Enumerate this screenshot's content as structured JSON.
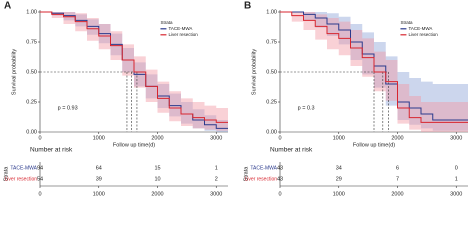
{
  "chart_data": [
    {
      "type": "line",
      "panel": "A",
      "ylabel": "Survival probability",
      "xlabel": "Follow up time(d)",
      "legend_title": "Strata",
      "annotation": "p = 0.93",
      "risk_title": "Number at risk",
      "risk_ylabel": "Strata",
      "xlim": [
        0,
        3200
      ],
      "ylim": [
        0,
        1
      ],
      "xticks": [
        0,
        1000,
        2000,
        3000
      ],
      "yticks": [
        {
          "value": 0,
          "label": "0.00"
        },
        {
          "value": 0.25,
          "label": "0.25"
        },
        {
          "value": 0.5,
          "label": "0.50"
        },
        {
          "value": 0.75,
          "label": "0.75"
        },
        {
          "value": 1,
          "label": "1.00"
        }
      ],
      "median_lines": {
        "y": 0.5,
        "x": [
          1480,
          1560,
          1650
        ]
      },
      "x": [
        0,
        200,
        400,
        600,
        800,
        1000,
        1200,
        1400,
        1600,
        1800,
        2000,
        2200,
        2400,
        2600,
        2800,
        3000,
        3200
      ],
      "series": [
        {
          "name": "TACE-MWA",
          "color": "#2b3a8c",
          "band_color": "#8fa3d6",
          "values": [
            1,
            0.99,
            0.97,
            0.93,
            0.88,
            0.82,
            0.73,
            0.6,
            0.48,
            0.38,
            0.3,
            0.22,
            0.15,
            0.1,
            0.06,
            0.03,
            0.03
          ],
          "lower": [
            1,
            0.97,
            0.93,
            0.88,
            0.81,
            0.74,
            0.64,
            0.5,
            0.38,
            0.28,
            0.2,
            0.13,
            0.07,
            0.03,
            0.01,
            0,
            0
          ],
          "upper": [
            1,
            1,
            1,
            0.98,
            0.94,
            0.9,
            0.82,
            0.7,
            0.58,
            0.48,
            0.4,
            0.32,
            0.25,
            0.19,
            0.14,
            0.1,
            0.1
          ],
          "risk": [
            94,
            64,
            15,
            1
          ]
        },
        {
          "name": "Liver resection",
          "color": "#d7262f",
          "band_color": "#f19aa3",
          "values": [
            1,
            0.98,
            0.96,
            0.92,
            0.86,
            0.8,
            0.72,
            0.6,
            0.5,
            0.38,
            0.28,
            0.2,
            0.15,
            0.12,
            0.1,
            0.08,
            0.08
          ],
          "lower": [
            1,
            0.95,
            0.9,
            0.84,
            0.76,
            0.69,
            0.6,
            0.47,
            0.37,
            0.25,
            0.16,
            0.09,
            0.05,
            0.03,
            0.02,
            0.01,
            0.01
          ],
          "upper": [
            1,
            1,
            1,
            0.99,
            0.95,
            0.9,
            0.84,
            0.73,
            0.63,
            0.52,
            0.42,
            0.34,
            0.28,
            0.25,
            0.22,
            0.2,
            0.2
          ],
          "risk": [
            54,
            39,
            10,
            2
          ]
        }
      ]
    },
    {
      "type": "line",
      "panel": "B",
      "ylabel": "Survival probability",
      "xlabel": "Follow up time(d)",
      "legend_title": "Strata",
      "annotation": "p = 0.3",
      "risk_title": "Number at risk",
      "risk_ylabel": "Strata",
      "xlim": [
        0,
        3200
      ],
      "ylim": [
        0,
        1
      ],
      "xticks": [
        0,
        1000,
        2000,
        3000
      ],
      "yticks": [
        {
          "value": 0,
          "label": "0.00"
        },
        {
          "value": 0.25,
          "label": "0.25"
        },
        {
          "value": 0.5,
          "label": "0.50"
        },
        {
          "value": 0.75,
          "label": "0.75"
        },
        {
          "value": 1,
          "label": "1.00"
        }
      ],
      "median_lines": {
        "y": 0.5,
        "x": [
          1600,
          1750,
          1850
        ]
      },
      "x": [
        0,
        200,
        400,
        600,
        800,
        1000,
        1200,
        1400,
        1600,
        1800,
        2000,
        2200,
        2400,
        2600,
        2800,
        3000,
        3200
      ],
      "series": [
        {
          "name": "TACE-MWA",
          "color": "#2b3a8c",
          "band_color": "#8fa3d6",
          "values": [
            1,
            1,
            0.98,
            0.95,
            0.9,
            0.85,
            0.75,
            0.65,
            0.55,
            0.4,
            0.25,
            0.2,
            0.15,
            0.1,
            0.1,
            0.1,
            0.1
          ],
          "lower": [
            1,
            1,
            0.93,
            0.87,
            0.8,
            0.73,
            0.6,
            0.48,
            0.37,
            0.22,
            0.1,
            0.06,
            0.03,
            0.01,
            0.01,
            0.01,
            0.01
          ],
          "upper": [
            1,
            1,
            1,
            1,
            0.99,
            0.96,
            0.9,
            0.83,
            0.75,
            0.63,
            0.5,
            0.45,
            0.42,
            0.4,
            0.4,
            0.4,
            0.4
          ],
          "risk": [
            43,
            34,
            6,
            0
          ]
        },
        {
          "name": "Liver resection",
          "color": "#d7262f",
          "band_color": "#f19aa3",
          "values": [
            1,
            0.97,
            0.93,
            0.88,
            0.82,
            0.78,
            0.7,
            0.62,
            0.5,
            0.42,
            0.2,
            0.12,
            0.08,
            0.08,
            0.08,
            0.08,
            0.08
          ],
          "lower": [
            1,
            0.92,
            0.85,
            0.77,
            0.69,
            0.64,
            0.55,
            0.46,
            0.34,
            0.26,
            0.07,
            0.02,
            0,
            0,
            0,
            0,
            0
          ],
          "upper": [
            1,
            1,
            1,
            0.98,
            0.95,
            0.92,
            0.85,
            0.78,
            0.67,
            0.6,
            0.4,
            0.3,
            0.25,
            0.25,
            0.25,
            0.25,
            0.25
          ],
          "risk": [
            43,
            29,
            7,
            1
          ]
        }
      ]
    }
  ]
}
